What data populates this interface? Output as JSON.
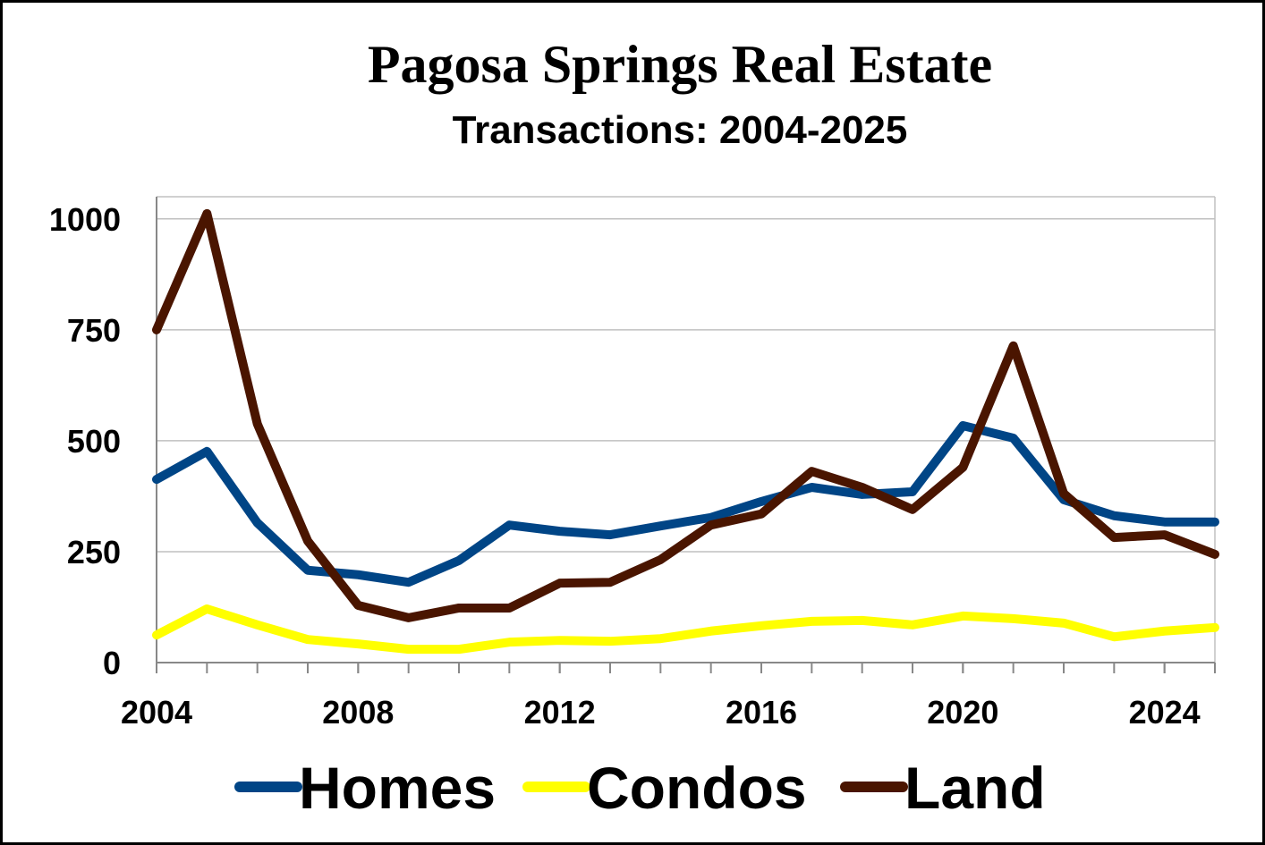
{
  "chart_data": {
    "type": "line",
    "title": "Pagosa Springs Real Estate",
    "subtitle": "Transactions: 2004-2025",
    "x": [
      2004,
      2005,
      2006,
      2007,
      2008,
      2009,
      2010,
      2011,
      2012,
      2013,
      2014,
      2015,
      2016,
      2017,
      2018,
      2019,
      2020,
      2021,
      2022,
      2023,
      2024,
      2025
    ],
    "series": [
      {
        "name": "Homes",
        "color": "#004586",
        "values": [
          413,
          476,
          315,
          208,
          198,
          181,
          230,
          310,
          296,
          288,
          308,
          327,
          363,
          395,
          379,
          385,
          534,
          506,
          367,
          331,
          317,
          317
        ]
      },
      {
        "name": "Condos",
        "color": "#ffff00",
        "values": [
          62,
          121,
          85,
          52,
          42,
          30,
          30,
          46,
          50,
          48,
          54,
          71,
          83,
          93,
          95,
          85,
          105,
          99,
          89,
          58,
          71,
          79
        ]
      },
      {
        "name": "Land",
        "color": "#4a1500",
        "values": [
          750,
          1012,
          538,
          274,
          129,
          101,
          123,
          123,
          179,
          181,
          232,
          310,
          335,
          431,
          395,
          345,
          440,
          714,
          381,
          282,
          288,
          244
        ]
      }
    ],
    "xlim": [
      2004,
      2025
    ],
    "xticks": [
      2004,
      2008,
      2012,
      2016,
      2020,
      2024
    ],
    "ylim": [
      0,
      1050
    ],
    "yticks": [
      0,
      250,
      500,
      750,
      1000
    ],
    "grid": true,
    "legend": "bottom"
  }
}
